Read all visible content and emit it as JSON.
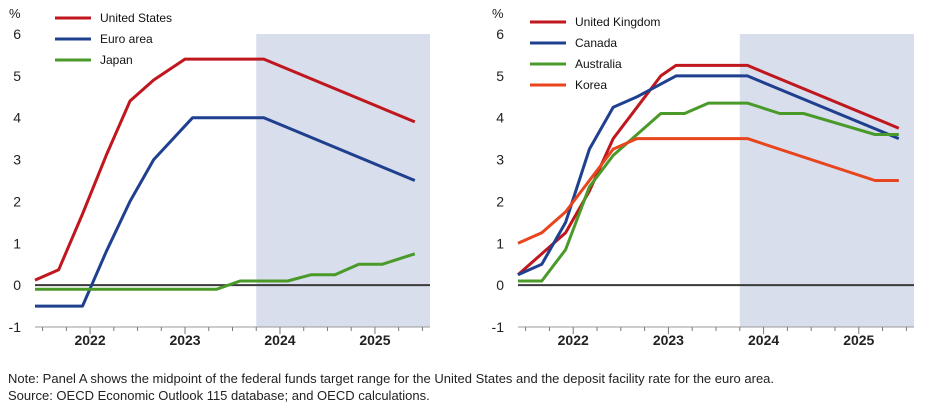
{
  "chart_data": [
    {
      "type": "line",
      "unit_label": "%",
      "ylim": [
        -1,
        6
      ],
      "yticks": [
        -1,
        0,
        1,
        2,
        3,
        4,
        5,
        6
      ],
      "xlim": [
        2021.42,
        2025.58
      ],
      "xticks": [
        {
          "label": "2022",
          "x": 2022.0
        },
        {
          "label": "2023",
          "x": 2023.0
        },
        {
          "label": "2024",
          "x": 2024.0
        },
        {
          "label": "2025",
          "x": 2025.0
        }
      ],
      "projection_start": 2023.75,
      "series": [
        {
          "name": "United States",
          "color": "#c0161d",
          "points": [
            [
              2021.42,
              0.12
            ],
            [
              2021.67,
              0.37
            ],
            [
              2021.92,
              1.7
            ],
            [
              2022.17,
              3.1
            ],
            [
              2022.42,
              4.4
            ],
            [
              2022.67,
              4.9
            ],
            [
              2023.0,
              5.4
            ],
            [
              2023.5,
              5.4
            ],
            [
              2023.83,
              5.4
            ],
            [
              2025.42,
              3.9
            ]
          ]
        },
        {
          "name": "Euro area",
          "color": "#1f3f8f",
          "points": [
            [
              2021.42,
              -0.5
            ],
            [
              2021.92,
              -0.5
            ],
            [
              2022.17,
              0.8
            ],
            [
              2022.42,
              2.0
            ],
            [
              2022.67,
              3.0
            ],
            [
              2023.08,
              4.0
            ],
            [
              2023.83,
              4.0
            ],
            [
              2025.42,
              2.5
            ]
          ]
        },
        {
          "name": "Japan",
          "color": "#4a9a2a",
          "points": [
            [
              2021.42,
              -0.1
            ],
            [
              2023.33,
              -0.1
            ],
            [
              2023.58,
              0.1
            ],
            [
              2024.08,
              0.1
            ],
            [
              2024.33,
              0.25
            ],
            [
              2024.58,
              0.25
            ],
            [
              2024.83,
              0.5
            ],
            [
              2025.08,
              0.5
            ],
            [
              2025.42,
              0.75
            ]
          ]
        }
      ]
    },
    {
      "type": "line",
      "unit_label": "%",
      "ylim": [
        -1,
        6
      ],
      "yticks": [
        -1,
        0,
        1,
        2,
        3,
        4,
        5,
        6
      ],
      "xlim": [
        2021.42,
        2025.58
      ],
      "xticks": [
        {
          "label": "2022",
          "x": 2022.0
        },
        {
          "label": "2023",
          "x": 2023.0
        },
        {
          "label": "2024",
          "x": 2024.0
        },
        {
          "label": "2025",
          "x": 2025.0
        }
      ],
      "projection_start": 2023.75,
      "series": [
        {
          "name": "United Kingdom",
          "color": "#c0161d",
          "points": [
            [
              2021.42,
              0.25
            ],
            [
              2021.92,
              1.25
            ],
            [
              2022.17,
              2.25
            ],
            [
              2022.42,
              3.5
            ],
            [
              2022.67,
              4.25
            ],
            [
              2022.92,
              5.0
            ],
            [
              2023.08,
              5.25
            ],
            [
              2023.83,
              5.25
            ],
            [
              2025.42,
              3.75
            ]
          ]
        },
        {
          "name": "Canada",
          "color": "#1f3f8f",
          "points": [
            [
              2021.42,
              0.25
            ],
            [
              2021.67,
              0.5
            ],
            [
              2021.92,
              1.5
            ],
            [
              2022.17,
              3.25
            ],
            [
              2022.42,
              4.25
            ],
            [
              2022.67,
              4.5
            ],
            [
              2023.08,
              5.0
            ],
            [
              2023.83,
              5.0
            ],
            [
              2025.42,
              3.5
            ]
          ]
        },
        {
          "name": "Australia",
          "color": "#4a9a2a",
          "points": [
            [
              2021.42,
              0.1
            ],
            [
              2021.67,
              0.1
            ],
            [
              2021.92,
              0.85
            ],
            [
              2022.17,
              2.35
            ],
            [
              2022.42,
              3.1
            ],
            [
              2022.67,
              3.6
            ],
            [
              2022.92,
              4.1
            ],
            [
              2023.17,
              4.1
            ],
            [
              2023.42,
              4.35
            ],
            [
              2023.83,
              4.35
            ],
            [
              2024.17,
              4.1
            ],
            [
              2024.42,
              4.1
            ],
            [
              2025.17,
              3.6
            ],
            [
              2025.42,
              3.6
            ]
          ]
        },
        {
          "name": "Korea",
          "color": "#e8441e",
          "points": [
            [
              2021.42,
              1.0
            ],
            [
              2021.67,
              1.25
            ],
            [
              2021.92,
              1.75
            ],
            [
              2022.17,
              2.5
            ],
            [
              2022.42,
              3.25
            ],
            [
              2022.67,
              3.5
            ],
            [
              2023.83,
              3.5
            ],
            [
              2025.17,
              2.5
            ],
            [
              2025.42,
              2.5
            ]
          ]
        }
      ]
    }
  ],
  "notes": {
    "line1": "Note: Panel A shows the midpoint of the federal funds target range for the United States and the deposit facility rate for the euro area.",
    "line2": "Source: OECD Economic Outlook 115 database; and OECD calculations."
  }
}
